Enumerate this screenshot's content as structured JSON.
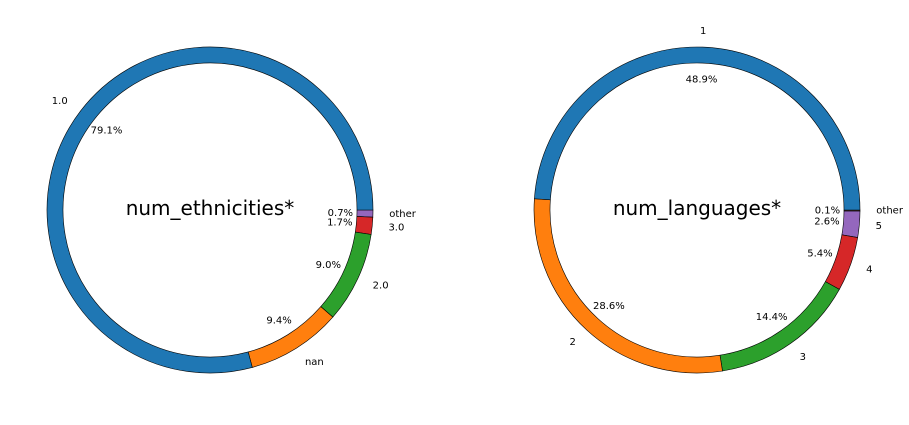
{
  "chart_data": [
    {
      "type": "pie",
      "style": "donut",
      "title": "num_ethnicities*",
      "slices": [
        {
          "label": "1.0",
          "value": 79.1,
          "pct_label": "79.1%",
          "color": "#1f77b4"
        },
        {
          "label": "nan",
          "value": 9.4,
          "pct_label": "9.4%",
          "color": "#ff7f0e"
        },
        {
          "label": "2.0",
          "value": 9.0,
          "pct_label": "9.0%",
          "color": "#2ca02c"
        },
        {
          "label": "3.0",
          "value": 1.7,
          "pct_label": "1.7%",
          "color": "#d62728"
        },
        {
          "label": "other",
          "value": 0.7,
          "pct_label": "0.7%",
          "color": "#9467bd"
        }
      ]
    },
    {
      "type": "pie",
      "style": "donut",
      "title": "num_languages*",
      "slices": [
        {
          "label": "1",
          "value": 48.9,
          "pct_label": "48.9%",
          "color": "#1f77b4"
        },
        {
          "label": "2",
          "value": 28.6,
          "pct_label": "28.6%",
          "color": "#ff7f0e"
        },
        {
          "label": "3",
          "value": 14.4,
          "pct_label": "14.4%",
          "color": "#2ca02c"
        },
        {
          "label": "4",
          "value": 5.4,
          "pct_label": "5.4%",
          "color": "#d62728"
        },
        {
          "label": "5",
          "value": 2.6,
          "pct_label": "2.6%",
          "color": "#9467bd"
        },
        {
          "label": "other",
          "value": 0.1,
          "pct_label": "0.1%",
          "color": "#8c564b"
        }
      ]
    }
  ]
}
